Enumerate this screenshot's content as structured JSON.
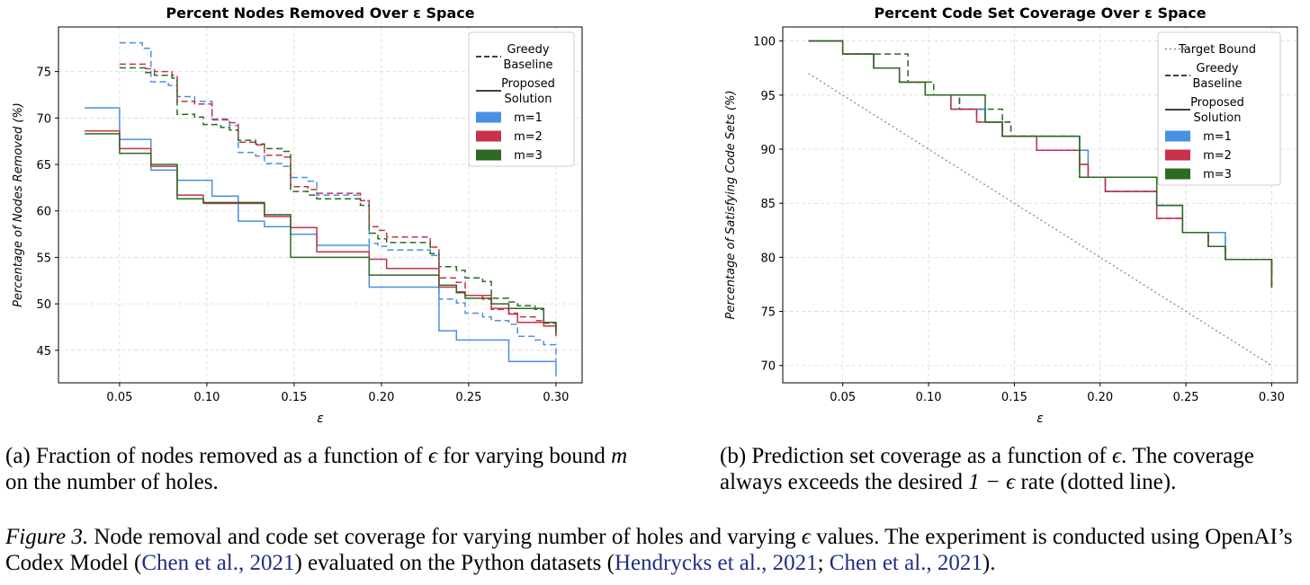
{
  "chart_data": [
    {
      "type": "line",
      "title": "Percent Nodes Removed Over ε Space",
      "xlabel": "ε",
      "ylabel": "Percentage of Nodes Removed (%)",
      "xlim": [
        0.015,
        0.315
      ],
      "ylim": [
        41.5,
        79.8
      ],
      "xticks": [
        0.05,
        0.1,
        0.15,
        0.2,
        0.25,
        0.3
      ],
      "xtick_labels": [
        "0.05",
        "0.10",
        "0.15",
        "0.20",
        "0.25",
        "0.30"
      ],
      "yticks": [
        45,
        50,
        55,
        60,
        65,
        70,
        75
      ],
      "ytick_labels": [
        "45",
        "50",
        "55",
        "60",
        "65",
        "70",
        "75"
      ],
      "grid": true,
      "legend_position": "top-right",
      "legend": [
        {
          "label": "Greedy\nBaseline",
          "kind": "dashed",
          "color": "#000000"
        },
        {
          "label": "Proposed\nSolution",
          "kind": "solid",
          "color": "#000000"
        },
        {
          "label": "m=1",
          "kind": "patch",
          "color": "#4a90e2"
        },
        {
          "label": "m=2",
          "kind": "patch",
          "color": "#c8314a"
        },
        {
          "label": "m=3",
          "kind": "patch",
          "color": "#2b6a1f"
        }
      ],
      "series": [
        {
          "name": "m=1 Greedy Baseline",
          "color": "#4a90e2",
          "style": "dashed",
          "x": [
            0.05,
            0.063,
            0.068,
            0.078,
            0.083,
            0.093,
            0.103,
            0.113,
            0.118,
            0.128,
            0.133,
            0.143,
            0.148,
            0.158,
            0.163,
            0.188,
            0.193,
            0.198,
            0.203,
            0.228,
            0.233,
            0.243,
            0.248,
            0.258,
            0.263,
            0.273,
            0.278,
            0.288,
            0.293,
            0.3
          ],
          "y": [
            78.1,
            77.5,
            73.9,
            73.5,
            72.3,
            71.8,
            69.9,
            69.2,
            66.3,
            65.9,
            65.1,
            64.8,
            63.6,
            63.2,
            61.7,
            61.1,
            56.5,
            56.2,
            55.8,
            55.2,
            50.5,
            50.1,
            49.0,
            48.6,
            48.2,
            47.8,
            46.5,
            46.1,
            45.6,
            43.9
          ]
        },
        {
          "name": "m=2 Greedy Baseline",
          "color": "#c8314a",
          "style": "dashed",
          "x": [
            0.05,
            0.065,
            0.07,
            0.08,
            0.083,
            0.093,
            0.103,
            0.113,
            0.118,
            0.128,
            0.133,
            0.143,
            0.148,
            0.158,
            0.163,
            0.188,
            0.193,
            0.198,
            0.203,
            0.228,
            0.233,
            0.243,
            0.248,
            0.258,
            0.263,
            0.273,
            0.278,
            0.288,
            0.293,
            0.3
          ],
          "y": [
            75.8,
            75.3,
            75.0,
            74.6,
            71.8,
            71.5,
            69.8,
            69.5,
            67.4,
            67.1,
            66.0,
            65.8,
            62.6,
            62.3,
            61.9,
            61.1,
            58.3,
            57.9,
            57.2,
            56.1,
            52.8,
            52.3,
            50.9,
            50.5,
            49.4,
            49.0,
            48.6,
            48.2,
            47.9,
            47.5
          ]
        },
        {
          "name": "m=3 Greedy Baseline",
          "color": "#2b6a1f",
          "style": "dashed",
          "x": [
            0.05,
            0.065,
            0.07,
            0.08,
            0.083,
            0.093,
            0.098,
            0.108,
            0.113,
            0.118,
            0.128,
            0.133,
            0.143,
            0.148,
            0.158,
            0.163,
            0.188,
            0.193,
            0.198,
            0.203,
            0.228,
            0.233,
            0.243,
            0.248,
            0.258,
            0.263,
            0.273,
            0.278,
            0.288,
            0.293,
            0.3
          ],
          "y": [
            75.4,
            74.9,
            74.6,
            74.3,
            70.4,
            70.1,
            69.3,
            69.0,
            68.7,
            67.6,
            67.2,
            66.7,
            66.4,
            62.1,
            61.7,
            61.3,
            60.6,
            57.6,
            57.0,
            56.6,
            55.4,
            54.0,
            53.6,
            52.8,
            52.4,
            50.6,
            50.2,
            49.8,
            49.4,
            48.0,
            46.7
          ]
        },
        {
          "name": "m=1 Proposed Solution",
          "color": "#4a90e2",
          "style": "solid",
          "x": [
            0.03,
            0.048,
            0.05,
            0.063,
            0.068,
            0.078,
            0.083,
            0.093,
            0.103,
            0.113,
            0.118,
            0.128,
            0.133,
            0.143,
            0.148,
            0.158,
            0.163,
            0.188,
            0.193,
            0.198,
            0.203,
            0.228,
            0.233,
            0.238,
            0.243,
            0.248,
            0.258,
            0.263,
            0.268,
            0.273,
            0.278,
            0.288,
            0.293,
            0.3
          ],
          "y": [
            71.1,
            71.1,
            67.7,
            67.7,
            64.4,
            64.4,
            63.3,
            63.3,
            61.6,
            61.6,
            58.9,
            58.9,
            58.3,
            58.3,
            57.5,
            57.5,
            56.3,
            56.3,
            51.8,
            51.8,
            51.8,
            51.8,
            47.1,
            47.1,
            46.1,
            46.1,
            46.1,
            46.1,
            46.1,
            43.8,
            43.8,
            43.8,
            43.8,
            42.2
          ]
        },
        {
          "name": "m=2 Proposed Solution",
          "color": "#c8314a",
          "style": "solid",
          "x": [
            0.03,
            0.048,
            0.05,
            0.063,
            0.068,
            0.078,
            0.083,
            0.093,
            0.098,
            0.128,
            0.133,
            0.143,
            0.148,
            0.158,
            0.163,
            0.183,
            0.188,
            0.193,
            0.198,
            0.203,
            0.228,
            0.233,
            0.243,
            0.248,
            0.258,
            0.263,
            0.273,
            0.278,
            0.288,
            0.293,
            0.3
          ],
          "y": [
            68.6,
            68.6,
            66.7,
            66.7,
            64.8,
            64.8,
            61.7,
            61.7,
            60.8,
            60.8,
            59.4,
            59.4,
            58.2,
            58.2,
            55.6,
            55.6,
            55.6,
            54.8,
            54.8,
            53.8,
            53.8,
            51.8,
            51.3,
            50.9,
            50.9,
            49.5,
            48.9,
            48.0,
            48.0,
            47.6,
            46.5
          ]
        },
        {
          "name": "m=3 Proposed Solution",
          "color": "#2b6a1f",
          "style": "solid",
          "x": [
            0.03,
            0.048,
            0.05,
            0.063,
            0.068,
            0.078,
            0.083,
            0.093,
            0.098,
            0.128,
            0.133,
            0.143,
            0.148,
            0.183,
            0.188,
            0.193,
            0.228,
            0.233,
            0.243,
            0.248,
            0.258,
            0.263,
            0.273,
            0.278,
            0.288,
            0.293,
            0.3
          ],
          "y": [
            68.3,
            68.3,
            66.2,
            66.2,
            65.0,
            65.0,
            61.3,
            61.3,
            60.9,
            60.9,
            59.6,
            59.6,
            55.0,
            55.0,
            55.0,
            53.1,
            53.1,
            52.0,
            51.2,
            50.6,
            50.6,
            50.0,
            49.5,
            49.5,
            49.5,
            48.0,
            46.8
          ]
        }
      ]
    },
    {
      "type": "line",
      "title": "Percent Code Set Coverage Over ε Space",
      "xlabel": "ε",
      "ylabel": "Percentage of Satisfying Code Sets (%)",
      "xlim": [
        0.015,
        0.315
      ],
      "ylim": [
        68.4,
        101.3
      ],
      "xticks": [
        0.05,
        0.1,
        0.15,
        0.2,
        0.25,
        0.3
      ],
      "xtick_labels": [
        "0.05",
        "0.10",
        "0.15",
        "0.20",
        "0.25",
        "0.30"
      ],
      "yticks": [
        70,
        75,
        80,
        85,
        90,
        95,
        100
      ],
      "ytick_labels": [
        "70",
        "75",
        "80",
        "85",
        "90",
        "95",
        "100"
      ],
      "grid": true,
      "legend_position": "top-right",
      "legend": [
        {
          "label": "Target Bound",
          "kind": "dotted",
          "color": "#888888"
        },
        {
          "label": "Greedy\nBaseline",
          "kind": "dashed",
          "color": "#000000"
        },
        {
          "label": "Proposed\nSolution",
          "kind": "solid",
          "color": "#000000"
        },
        {
          "label": "m=1",
          "kind": "patch",
          "color": "#4a90e2"
        },
        {
          "label": "m=2",
          "kind": "patch",
          "color": "#c8314a"
        },
        {
          "label": "m=3",
          "kind": "patch",
          "color": "#2b6a1f"
        }
      ],
      "series": [
        {
          "name": "Target Bound",
          "color": "#888888",
          "style": "dotted",
          "x": [
            0.03,
            0.3
          ],
          "y": [
            97.0,
            70.0
          ]
        },
        {
          "name": "m=1 Greedy Baseline",
          "color": "#4a90e2",
          "style": "dashed",
          "x": [
            0.03,
            0.048,
            0.05,
            0.063,
            0.068,
            0.078,
            0.083,
            0.093,
            0.098,
            0.113,
            0.118,
            0.128,
            0.133,
            0.143,
            0.148,
            0.183,
            0.188,
            0.193,
            0.203,
            0.228,
            0.233,
            0.243,
            0.248,
            0.258,
            0.263,
            0.268,
            0.273,
            0.298,
            0.3
          ],
          "y": [
            100,
            100,
            98.8,
            98.8,
            97.5,
            97.5,
            96.2,
            96.2,
            95.0,
            95.0,
            93.7,
            93.7,
            92.5,
            92.5,
            91.2,
            91.2,
            89.9,
            87.4,
            86.1,
            86.1,
            84.8,
            84.8,
            82.3,
            82.3,
            82.3,
            82.3,
            79.8,
            79.8,
            78.5
          ]
        },
        {
          "name": "m=2 Greedy Baseline",
          "color": "#c8314a",
          "style": "dashed",
          "x": [
            0.03,
            0.048,
            0.05,
            0.063,
            0.068,
            0.078,
            0.083,
            0.093,
            0.098,
            0.113,
            0.118,
            0.123,
            0.128,
            0.133,
            0.143,
            0.148,
            0.158,
            0.163,
            0.183,
            0.188,
            0.193,
            0.203,
            0.228,
            0.233,
            0.238,
            0.243,
            0.248,
            0.258,
            0.263,
            0.273,
            0.298,
            0.3
          ],
          "y": [
            100,
            100,
            98.8,
            98.8,
            97.5,
            97.5,
            96.2,
            96.2,
            95.0,
            95.0,
            93.7,
            93.7,
            92.5,
            92.5,
            91.2,
            91.2,
            91.2,
            89.9,
            89.9,
            88.6,
            87.4,
            86.1,
            86.1,
            83.6,
            83.6,
            83.6,
            82.3,
            82.3,
            81.0,
            79.8,
            79.8,
            77.2
          ]
        },
        {
          "name": "m=3 Greedy Baseline",
          "color": "#2b6a1f",
          "style": "dashed",
          "x": [
            0.03,
            0.048,
            0.05,
            0.083,
            0.088,
            0.098,
            0.103,
            0.113,
            0.118,
            0.138,
            0.143,
            0.148,
            0.183,
            0.188,
            0.193,
            0.228,
            0.233,
            0.243,
            0.248,
            0.258,
            0.263,
            0.273,
            0.298,
            0.3
          ],
          "y": [
            100,
            100,
            98.8,
            98.8,
            96.2,
            96.2,
            95.0,
            95.0,
            93.7,
            93.7,
            92.5,
            91.2,
            91.2,
            87.4,
            87.4,
            87.4,
            84.8,
            84.8,
            82.3,
            82.3,
            81.0,
            79.8,
            79.8,
            77.2
          ]
        },
        {
          "name": "m=1 Proposed Solution",
          "color": "#4a90e2",
          "style": "solid",
          "x": [
            0.03,
            0.05,
            0.068,
            0.078,
            0.083,
            0.093,
            0.098,
            0.108,
            0.113,
            0.128,
            0.133,
            0.138,
            0.143,
            0.183,
            0.188,
            0.193,
            0.203,
            0.228,
            0.233,
            0.243,
            0.248,
            0.258,
            0.263,
            0.268,
            0.273,
            0.298,
            0.3
          ],
          "y": [
            100,
            98.8,
            97.5,
            97.5,
            96.2,
            96.2,
            95.0,
            95.0,
            93.7,
            93.7,
            92.5,
            92.5,
            91.2,
            91.2,
            89.9,
            87.4,
            86.1,
            86.1,
            84.8,
            84.8,
            82.3,
            82.3,
            82.3,
            82.3,
            79.8,
            79.8,
            78.5
          ]
        },
        {
          "name": "m=2 Proposed Solution",
          "color": "#c8314a",
          "style": "solid",
          "x": [
            0.03,
            0.05,
            0.068,
            0.078,
            0.083,
            0.093,
            0.098,
            0.108,
            0.113,
            0.123,
            0.128,
            0.133,
            0.143,
            0.158,
            0.163,
            0.183,
            0.188,
            0.193,
            0.203,
            0.228,
            0.233,
            0.238,
            0.243,
            0.248,
            0.258,
            0.263,
            0.273,
            0.298,
            0.3
          ],
          "y": [
            100,
            98.8,
            97.5,
            97.5,
            96.2,
            96.2,
            95.0,
            95.0,
            93.7,
            93.7,
            92.5,
            92.5,
            91.2,
            91.2,
            89.9,
            89.9,
            88.6,
            87.4,
            86.1,
            86.1,
            83.6,
            83.6,
            83.6,
            82.3,
            82.3,
            81.0,
            79.8,
            79.8,
            77.2
          ]
        },
        {
          "name": "m=3 Proposed Solution",
          "color": "#2b6a1f",
          "style": "solid",
          "x": [
            0.03,
            0.05,
            0.068,
            0.078,
            0.083,
            0.093,
            0.098,
            0.128,
            0.133,
            0.138,
            0.143,
            0.183,
            0.188,
            0.193,
            0.228,
            0.233,
            0.243,
            0.248,
            0.258,
            0.263,
            0.273,
            0.298,
            0.3
          ],
          "y": [
            100,
            98.8,
            97.5,
            97.5,
            96.2,
            96.2,
            95.0,
            95.0,
            92.5,
            92.5,
            91.2,
            91.2,
            87.4,
            87.4,
            87.4,
            84.8,
            84.8,
            82.3,
            82.3,
            81.0,
            79.8,
            79.8,
            77.2
          ]
        }
      ]
    }
  ],
  "captions": {
    "a": {
      "prefix": "(a) Fraction of nodes removed as a function of ",
      "epsilon": "ϵ",
      "middle": " for varying bound ",
      "m": "m",
      "suffix": " on the number of holes."
    },
    "b": {
      "prefix": "(b) Prediction set coverage as a function of ",
      "epsilon": "ϵ",
      "middle": ". The coverage always exceeds the desired ",
      "formula": "1 − ϵ",
      "suffix": " rate (dotted line)."
    },
    "figure": {
      "label": "Figure 3.",
      "text1": " Node removal and code set coverage for varying number of holes and varying ",
      "epsilon": "ϵ",
      "text2": " values. The experiment is conducted using OpenAI’s Codex Model (",
      "cite1": "Chen et al., 2021",
      "text3": ") evaluated on the Python datasets (",
      "cite2": "Hendrycks et al., 2021",
      "sep": "; ",
      "cite3": "Chen et al., 2021",
      "text4": ")."
    }
  }
}
